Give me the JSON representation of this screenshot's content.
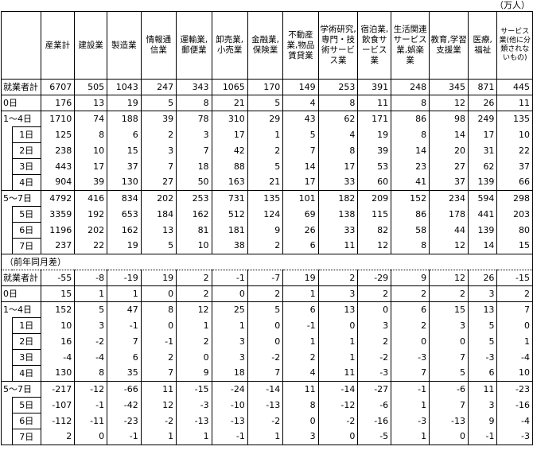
{
  "unit": "（万人）",
  "columns": [
    "産業計",
    "建設業",
    "製造業",
    "情報通信業",
    "運輸業,郵便業",
    "卸売業,小売業",
    "金融業,保険業",
    "不動産業,物品賃貸業",
    "学術研究,専門・技術サービス業",
    "宿泊業,飲食サービス業",
    "生活関連サービス業,娯楽業",
    "教育,学習支援業",
    "医療,福祉",
    "サービス業(他に分類されないもの)"
  ],
  "section_label": "（前年同月差）",
  "rows": [
    {
      "label": "就業者計",
      "indent": false,
      "values": [
        "6707",
        "505",
        "1043",
        "247",
        "343",
        "1065",
        "170",
        "149",
        "253",
        "391",
        "248",
        "345",
        "871",
        "445"
      ]
    },
    {
      "label": "0日",
      "indent": false,
      "values": [
        "176",
        "13",
        "19",
        "5",
        "8",
        "21",
        "5",
        "4",
        "8",
        "11",
        "8",
        "12",
        "26",
        "11"
      ]
    },
    {
      "label": "1～4日",
      "indent": false,
      "values": [
        "1710",
        "74",
        "188",
        "39",
        "78",
        "310",
        "29",
        "43",
        "62",
        "171",
        "86",
        "98",
        "249",
        "135"
      ]
    },
    {
      "label": "1日",
      "indent": true,
      "values": [
        "125",
        "8",
        "6",
        "2",
        "3",
        "17",
        "1",
        "5",
        "4",
        "19",
        "8",
        "14",
        "17",
        "10"
      ]
    },
    {
      "label": "2日",
      "indent": true,
      "values": [
        "238",
        "10",
        "15",
        "3",
        "7",
        "42",
        "2",
        "7",
        "8",
        "39",
        "14",
        "20",
        "31",
        "22"
      ]
    },
    {
      "label": "3日",
      "indent": true,
      "values": [
        "443",
        "17",
        "37",
        "7",
        "18",
        "88",
        "5",
        "14",
        "17",
        "53",
        "23",
        "27",
        "62",
        "37"
      ]
    },
    {
      "label": "4日",
      "indent": true,
      "values": [
        "904",
        "39",
        "130",
        "27",
        "50",
        "163",
        "21",
        "17",
        "33",
        "60",
        "41",
        "37",
        "139",
        "66"
      ]
    },
    {
      "label": "5～7日",
      "indent": false,
      "values": [
        "4792",
        "416",
        "834",
        "202",
        "253",
        "731",
        "135",
        "101",
        "182",
        "209",
        "152",
        "234",
        "594",
        "298"
      ]
    },
    {
      "label": "5日",
      "indent": true,
      "values": [
        "3359",
        "192",
        "653",
        "184",
        "162",
        "512",
        "124",
        "69",
        "138",
        "115",
        "86",
        "178",
        "441",
        "203"
      ]
    },
    {
      "label": "6日",
      "indent": true,
      "values": [
        "1196",
        "202",
        "162",
        "13",
        "81",
        "181",
        "9",
        "26",
        "33",
        "82",
        "58",
        "44",
        "139",
        "80"
      ]
    },
    {
      "label": "7日",
      "indent": true,
      "values": [
        "237",
        "22",
        "19",
        "5",
        "10",
        "38",
        "2",
        "6",
        "11",
        "12",
        "8",
        "12",
        "14",
        "15"
      ]
    }
  ],
  "diff_rows": [
    {
      "label": "就業者計",
      "indent": false,
      "values": [
        "-55",
        "-8",
        "-19",
        "19",
        "2",
        "-1",
        "-7",
        "19",
        "2",
        "-29",
        "9",
        "12",
        "26",
        "-15"
      ]
    },
    {
      "label": "0日",
      "indent": false,
      "values": [
        "15",
        "1",
        "1",
        "0",
        "2",
        "0",
        "2",
        "1",
        "3",
        "2",
        "2",
        "2",
        "3",
        "2"
      ]
    },
    {
      "label": "1～4日",
      "indent": false,
      "values": [
        "152",
        "5",
        "47",
        "8",
        "12",
        "25",
        "5",
        "6",
        "13",
        "0",
        "6",
        "15",
        "13",
        "7"
      ]
    },
    {
      "label": "1日",
      "indent": true,
      "values": [
        "10",
        "3",
        "-1",
        "0",
        "1",
        "1",
        "0",
        "-1",
        "0",
        "3",
        "2",
        "3",
        "5",
        "0"
      ]
    },
    {
      "label": "2日",
      "indent": true,
      "values": [
        "16",
        "-2",
        "7",
        "-1",
        "2",
        "3",
        "0",
        "1",
        "1",
        "2",
        "0",
        "0",
        "5",
        "1"
      ]
    },
    {
      "label": "3日",
      "indent": true,
      "values": [
        "-4",
        "-4",
        "6",
        "2",
        "0",
        "3",
        "-2",
        "2",
        "1",
        "-2",
        "-3",
        "7",
        "-3",
        "-4"
      ]
    },
    {
      "label": "4日",
      "indent": true,
      "values": [
        "130",
        "8",
        "35",
        "7",
        "9",
        "18",
        "7",
        "4",
        "11",
        "-3",
        "7",
        "5",
        "6",
        "10"
      ]
    },
    {
      "label": "5～7日",
      "indent": false,
      "values": [
        "-217",
        "-12",
        "-66",
        "11",
        "-15",
        "-24",
        "-14",
        "11",
        "-14",
        "-27",
        "-1",
        "-6",
        "11",
        "-23"
      ]
    },
    {
      "label": "5日",
      "indent": true,
      "values": [
        "-107",
        "-1",
        "-42",
        "12",
        "-3",
        "-10",
        "-13",
        "8",
        "-12",
        "-6",
        "1",
        "7",
        "3",
        "-16"
      ]
    },
    {
      "label": "6日",
      "indent": true,
      "values": [
        "-112",
        "-11",
        "-23",
        "-2",
        "-13",
        "-13",
        "-2",
        "0",
        "-2",
        "-16",
        "-3",
        "-13",
        "9",
        "-4"
      ]
    },
    {
      "label": "7日",
      "indent": true,
      "values": [
        "2",
        "0",
        "-1",
        "1",
        "1",
        "-1",
        "1",
        "3",
        "0",
        "-5",
        "1",
        "0",
        "-1",
        "-3"
      ]
    }
  ]
}
